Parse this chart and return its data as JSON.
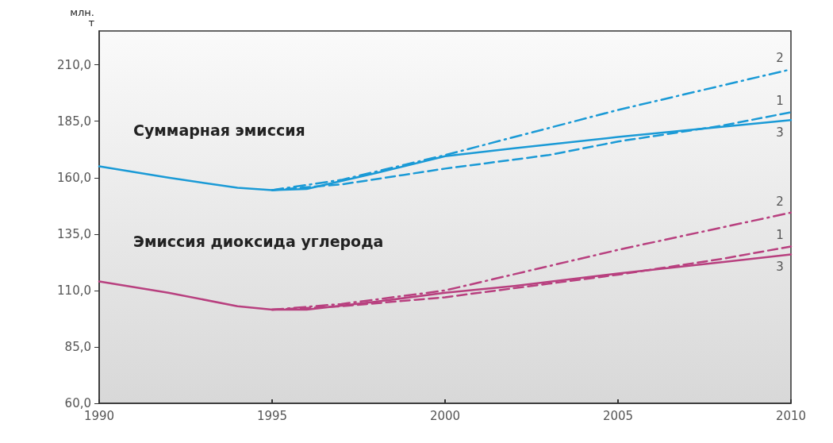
{
  "chart_data": {
    "type": "line",
    "ylabel": "млн.\nт",
    "xlim": [
      1990,
      2010
    ],
    "xticks": [
      1990,
      1995,
      2000,
      2005,
      2010
    ],
    "ylim": [
      60,
      225
    ],
    "yticks": [
      {
        "value": 60,
        "label": "60,0"
      },
      {
        "value": 85,
        "label": "85,0"
      },
      {
        "value": 110,
        "label": "110,0"
      },
      {
        "value": 135,
        "label": "135,0"
      },
      {
        "value": 160,
        "label": "160,0"
      },
      {
        "value": 185,
        "label": "185,0"
      },
      {
        "value": 210,
        "label": "210,0"
      }
    ],
    "grid": false,
    "marker": "none",
    "series": [
      {
        "name": "3",
        "color": "#1a9ad6",
        "line_style": "solid",
        "x": [
          1990,
          1992,
          1994,
          1995,
          1996,
          1998,
          2000,
          2002,
          2005,
          2008,
          2010
        ],
        "values": [
          165,
          160,
          155.5,
          154.5,
          155,
          162,
          169.5,
          173,
          178,
          182.5,
          185.5
        ]
      },
      {
        "name": "1",
        "color": "#1a9ad6",
        "line_style": "dashed",
        "x": [
          1995,
          1997,
          2000,
          2003,
          2005,
          2008,
          2010
        ],
        "values": [
          154.5,
          157,
          164,
          170,
          176,
          183,
          189
        ]
      },
      {
        "name": "2",
        "color": "#1a9ad6",
        "line_style": "dashdot",
        "x": [
          1995,
          1997,
          2000,
          2005,
          2010
        ],
        "values": [
          154.5,
          159,
          170,
          190,
          208
        ]
      },
      {
        "name": "3",
        "color": "#b8407f",
        "line_style": "solid",
        "x": [
          1990,
          1992,
          1994,
          1995,
          1996,
          1998,
          2000,
          2002,
          2005,
          2008,
          2010
        ],
        "values": [
          114,
          109,
          103,
          101.5,
          101.5,
          105,
          109,
          112,
          117.5,
          122.5,
          126
        ]
      },
      {
        "name": "1",
        "color": "#b8407f",
        "line_style": "dashed",
        "x": [
          1995,
          1997,
          2000,
          2003,
          2005,
          2008,
          2010
        ],
        "values": [
          101.5,
          103,
          107,
          113,
          117,
          124,
          129.5
        ]
      },
      {
        "name": "2",
        "color": "#b8407f",
        "line_style": "dashdot",
        "x": [
          1995,
          1997,
          2000,
          2005,
          2010
        ],
        "values": [
          101.5,
          104,
          110,
          128,
          144.5
        ]
      }
    ],
    "annotations": [
      "Суммарная эмиссия",
      "Эмиссия диоксида углерода"
    ]
  }
}
